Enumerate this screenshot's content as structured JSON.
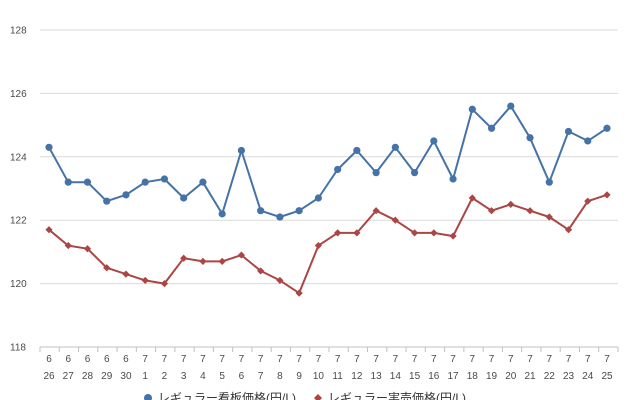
{
  "chart_data": {
    "type": "line",
    "title": "",
    "xlabel": "",
    "ylabel": "",
    "ylim": [
      118,
      128
    ],
    "yticks": [
      118,
      120,
      122,
      124,
      126,
      128
    ],
    "grid": true,
    "legend_placement": "bottom",
    "categories": [
      {
        "month": "6",
        "day": "26"
      },
      {
        "month": "6",
        "day": "27"
      },
      {
        "month": "6",
        "day": "28"
      },
      {
        "month": "6",
        "day": "29"
      },
      {
        "month": "6",
        "day": "30"
      },
      {
        "month": "7",
        "day": "1"
      },
      {
        "month": "7",
        "day": "2"
      },
      {
        "month": "7",
        "day": "3"
      },
      {
        "month": "7",
        "day": "4"
      },
      {
        "month": "7",
        "day": "5"
      },
      {
        "month": "7",
        "day": "6"
      },
      {
        "month": "7",
        "day": "7"
      },
      {
        "month": "7",
        "day": "8"
      },
      {
        "month": "7",
        "day": "9"
      },
      {
        "month": "7",
        "day": "10"
      },
      {
        "month": "7",
        "day": "11"
      },
      {
        "month": "7",
        "day": "12"
      },
      {
        "month": "7",
        "day": "13"
      },
      {
        "month": "7",
        "day": "14"
      },
      {
        "month": "7",
        "day": "15"
      },
      {
        "month": "7",
        "day": "16"
      },
      {
        "month": "7",
        "day": "17"
      },
      {
        "month": "7",
        "day": "18"
      },
      {
        "month": "7",
        "day": "19"
      },
      {
        "month": "7",
        "day": "20"
      },
      {
        "month": "7",
        "day": "21"
      },
      {
        "month": "7",
        "day": "22"
      },
      {
        "month": "7",
        "day": "23"
      },
      {
        "month": "7",
        "day": "24"
      },
      {
        "month": "7",
        "day": "25"
      }
    ],
    "series": [
      {
        "name": "レギュラー看板価格(円/L)",
        "color": "#4572a7",
        "marker": "circle",
        "values": [
          124.3,
          123.2,
          123.2,
          122.6,
          122.8,
          123.2,
          123.3,
          122.7,
          123.2,
          122.2,
          124.2,
          122.3,
          122.1,
          122.3,
          122.7,
          123.6,
          124.2,
          123.5,
          124.3,
          123.5,
          124.5,
          123.3,
          125.5,
          124.9,
          125.6,
          124.6,
          123.2,
          124.8,
          124.5,
          124.9
        ]
      },
      {
        "name": "レギュラー実売価格(円/L)",
        "color": "#aa4643",
        "marker": "diamond",
        "values": [
          121.7,
          121.2,
          121.1,
          120.5,
          120.3,
          120.1,
          120.0,
          120.8,
          120.7,
          120.7,
          120.9,
          120.4,
          120.1,
          119.7,
          121.2,
          121.6,
          121.6,
          122.3,
          122.0,
          121.6,
          121.6,
          121.5,
          122.7,
          122.3,
          122.5,
          122.3,
          122.1,
          121.7,
          122.6,
          122.8
        ]
      }
    ]
  }
}
